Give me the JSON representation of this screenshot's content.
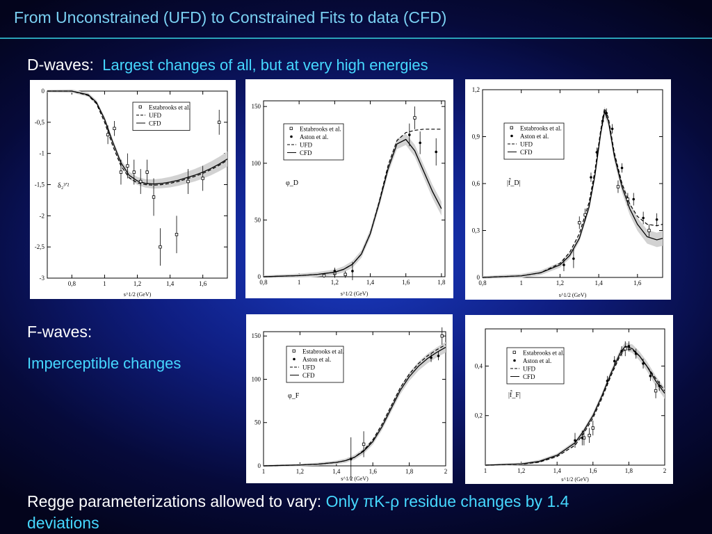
{
  "slide_title": "From Unconstrained (UFD) to Constrained Fits to data (CFD)",
  "dwaves": {
    "label": "D-waves:",
    "note": "Largest changes of all, but at very high energies"
  },
  "fwaves": {
    "label": "F-waves:",
    "note": "Imperceptible changes"
  },
  "footer": {
    "lead": "Regge parameterizations allowed to vary:",
    "highlight": "Only πK-ρ residue changes by 1.4",
    "tail": "deviations"
  },
  "chart_data": [
    {
      "type": "line",
      "ylabel": "δ₂³′²",
      "xlabel": "s^1/2 (GeV)",
      "xlim": [
        0.65,
        1.75
      ],
      "ylim": [
        -3,
        0
      ],
      "xticks": [
        0.8,
        1,
        1.2,
        1.4,
        1.6
      ],
      "xtick_labels": [
        "0,8",
        "1",
        "1,2",
        "1,4",
        "1,6"
      ],
      "yticks": [
        0,
        -0.5,
        -1,
        -1.5,
        -2,
        -2.5,
        -3
      ],
      "ytick_labels": [
        "0",
        "-0,5",
        "-1",
        "-1,5",
        "-2",
        "-2,5",
        "-3"
      ],
      "legend": [
        "Estabrooks et al.",
        "UFD",
        "CFD"
      ],
      "legend_position": "top-right",
      "series": [
        {
          "name": "CFD",
          "x": [
            0.65,
            0.8,
            0.9,
            0.95,
            1.0,
            1.05,
            1.1,
            1.15,
            1.2,
            1.25,
            1.3,
            1.35,
            1.4,
            1.45,
            1.5,
            1.55,
            1.6,
            1.65,
            1.7,
            1.75
          ],
          "y": [
            0,
            0,
            -0.06,
            -0.18,
            -0.45,
            -0.82,
            -1.15,
            -1.35,
            -1.44,
            -1.48,
            -1.49,
            -1.48,
            -1.46,
            -1.43,
            -1.39,
            -1.35,
            -1.3,
            -1.24,
            -1.17,
            -1.09
          ]
        },
        {
          "name": "UFD",
          "x": [
            0.65,
            0.8,
            0.9,
            0.95,
            1.0,
            1.05,
            1.1,
            1.15,
            1.2,
            1.25,
            1.3,
            1.35,
            1.4,
            1.45,
            1.5,
            1.55,
            1.6,
            1.65,
            1.7,
            1.75
          ],
          "y": [
            0,
            0,
            -0.07,
            -0.2,
            -0.5,
            -0.88,
            -1.2,
            -1.39,
            -1.47,
            -1.5,
            -1.51,
            -1.5,
            -1.48,
            -1.45,
            -1.41,
            -1.37,
            -1.32,
            -1.26,
            -1.19,
            -1.11
          ]
        },
        {
          "name": "Estabrooks et al.",
          "points": [
            [
              1.02,
              -0.7,
              0.15
            ],
            [
              1.06,
              -0.6,
              0.12
            ],
            [
              1.1,
              -1.3,
              0.2
            ],
            [
              1.14,
              -1.2,
              0.2
            ],
            [
              1.18,
              -1.3,
              0.2
            ],
            [
              1.22,
              -1.45,
              0.2
            ],
            [
              1.26,
              -1.3,
              0.2
            ],
            [
              1.3,
              -1.7,
              0.3
            ],
            [
              1.34,
              -2.5,
              0.3
            ],
            [
              1.44,
              -2.3,
              0.3
            ],
            [
              1.51,
              -1.45,
              0.2
            ],
            [
              1.6,
              -1.4,
              0.2
            ],
            [
              1.7,
              -0.5,
              0.2
            ]
          ]
        }
      ]
    },
    {
      "type": "line",
      "ylabel": "φ_D",
      "xlabel": "s^1/2 (GeV)",
      "xlim": [
        0.8,
        1.82
      ],
      "ylim": [
        0,
        155
      ],
      "xticks": [
        0.8,
        1,
        1.2,
        1.4,
        1.6,
        1.8
      ],
      "xtick_labels": [
        "0,8",
        "1",
        "1,2",
        "1,4",
        "1,6",
        "1,8"
      ],
      "yticks": [
        0,
        50,
        100,
        150
      ],
      "ytick_labels": [
        "0",
        "50",
        "100",
        "150"
      ],
      "legend": [
        "Estabrooks et al.",
        "Aston et al.",
        "UFD",
        "CFD"
      ],
      "legend_position": "top-left",
      "series": [
        {
          "name": "CFD",
          "x": [
            0.8,
            0.9,
            1.0,
            1.1,
            1.2,
            1.25,
            1.3,
            1.35,
            1.4,
            1.45,
            1.5,
            1.55,
            1.6,
            1.65,
            1.7,
            1.75,
            1.8
          ],
          "y": [
            0,
            0.5,
            1,
            2,
            4,
            6.5,
            11,
            20,
            38,
            65,
            95,
            117,
            121,
            111,
            93,
            75,
            60
          ]
        },
        {
          "name": "UFD",
          "x": [
            0.8,
            0.9,
            1.0,
            1.1,
            1.2,
            1.25,
            1.3,
            1.35,
            1.4,
            1.45,
            1.5,
            1.55,
            1.6,
            1.65,
            1.7,
            1.75,
            1.8
          ],
          "y": [
            0,
            0.5,
            1,
            2,
            4,
            6.5,
            11,
            20,
            38,
            66,
            98,
            120,
            127,
            129,
            130,
            130,
            130
          ]
        },
        {
          "name": "Estabrooks et al.",
          "points": [
            [
              1.14,
              1,
              2
            ],
            [
              1.2,
              3,
              4
            ],
            [
              1.26,
              2,
              3
            ],
            [
              1.65,
              140,
              10
            ]
          ]
        },
        {
          "name": "Aston et al.",
          "points": [
            [
              1.2,
              5,
              3
            ],
            [
              1.3,
              5,
              8
            ],
            [
              1.62,
              125,
              10
            ],
            [
              1.68,
              118,
              10
            ],
            [
              1.77,
              110,
              12
            ]
          ]
        }
      ]
    },
    {
      "type": "line",
      "ylabel": "|f̂_D|",
      "xlabel": "s^1/2 (GeV)",
      "xlim": [
        0.8,
        1.73
      ],
      "ylim": [
        0,
        1.2
      ],
      "xticks": [
        0.8,
        1,
        1.2,
        1.4,
        1.6
      ],
      "xtick_labels": [
        "0,8",
        "1",
        "1,2",
        "1,4",
        "1,6"
      ],
      "yticks": [
        0,
        0.3,
        0.6,
        0.9,
        1.2
      ],
      "ytick_labels": [
        "0",
        "0,3",
        "0,6",
        "0,9",
        "1,2"
      ],
      "legend": [
        "Estabrooks et al.",
        "Aston et al.",
        "UFD",
        "CFD"
      ],
      "legend_position": "top-right",
      "series": [
        {
          "name": "CFD",
          "x": [
            0.8,
            0.9,
            1.0,
            1.1,
            1.2,
            1.25,
            1.3,
            1.35,
            1.38,
            1.41,
            1.43,
            1.45,
            1.48,
            1.52,
            1.56,
            1.6,
            1.65,
            1.7,
            1.73
          ],
          "y": [
            0,
            0.005,
            0.01,
            0.03,
            0.08,
            0.14,
            0.25,
            0.45,
            0.65,
            0.92,
            1.06,
            1.0,
            0.78,
            0.58,
            0.44,
            0.34,
            0.26,
            0.24,
            0.25
          ]
        },
        {
          "name": "UFD",
          "x": [
            0.8,
            0.9,
            1.0,
            1.1,
            1.2,
            1.25,
            1.3,
            1.35,
            1.38,
            1.41,
            1.43,
            1.45,
            1.48,
            1.52,
            1.56,
            1.6,
            1.65,
            1.7,
            1.73
          ],
          "y": [
            0,
            0.005,
            0.01,
            0.03,
            0.09,
            0.16,
            0.28,
            0.48,
            0.68,
            0.94,
            1.08,
            1.02,
            0.8,
            0.6,
            0.47,
            0.39,
            0.34,
            0.33,
            0.34
          ]
        },
        {
          "name": "Estabrooks et al.",
          "points": [
            [
              1.3,
              0.35,
              0.04
            ],
            [
              1.33,
              0.4,
              0.04
            ],
            [
              1.5,
              0.58,
              0.04
            ],
            [
              1.55,
              0.5,
              0.04
            ],
            [
              1.66,
              0.3,
              0.04
            ]
          ]
        },
        {
          "name": "Aston et al.",
          "points": [
            [
              1.22,
              0.08,
              0.04
            ],
            [
              1.27,
              0.12,
              0.06
            ],
            [
              1.36,
              0.64,
              0.03
            ],
            [
              1.39,
              0.8,
              0.03
            ],
            [
              1.42,
              1.0,
              0.03
            ],
            [
              1.44,
              1.05,
              0.03
            ],
            [
              1.47,
              0.95,
              0.03
            ],
            [
              1.52,
              0.7,
              0.03
            ],
            [
              1.58,
              0.5,
              0.04
            ],
            [
              1.63,
              0.38,
              0.04
            ],
            [
              1.7,
              0.37,
              0.04
            ]
          ]
        }
      ]
    },
    {
      "type": "line",
      "ylabel": "φ_F",
      "xlabel": "s^1/2 (GeV)",
      "xlim": [
        1.0,
        2.0
      ],
      "ylim": [
        0,
        155
      ],
      "xticks": [
        1,
        1.2,
        1.4,
        1.6,
        1.8,
        2
      ],
      "xtick_labels": [
        "1",
        "1,2",
        "1,4",
        "1,6",
        "1,8",
        "2"
      ],
      "yticks": [
        0,
        50,
        100,
        150
      ],
      "ytick_labels": [
        "0",
        "50",
        "100",
        "150"
      ],
      "legend": [
        "Estabrooks et al.",
        "Aston et al.",
        "UFD",
        "CFD"
      ],
      "legend_position": "top-center",
      "series": [
        {
          "name": "CFD",
          "x": [
            1.0,
            1.2,
            1.3,
            1.4,
            1.45,
            1.5,
            1.55,
            1.6,
            1.65,
            1.7,
            1.75,
            1.8,
            1.85,
            1.9,
            1.95,
            2.0
          ],
          "y": [
            0,
            1,
            2,
            4,
            6,
            10,
            17,
            28,
            45,
            66,
            87,
            103,
            115,
            124,
            131,
            137
          ]
        },
        {
          "name": "UFD",
          "x": [
            1.0,
            1.2,
            1.3,
            1.4,
            1.45,
            1.5,
            1.55,
            1.6,
            1.65,
            1.7,
            1.75,
            1.8,
            1.85,
            1.9,
            1.95,
            2.0
          ],
          "y": [
            0,
            1,
            2,
            4,
            6,
            10,
            18,
            30,
            48,
            69,
            90,
            106,
            118,
            127,
            134,
            140
          ]
        },
        {
          "name": "Estabrooks et al.",
          "points": [
            [
              1.55,
              25,
              15
            ],
            [
              1.98,
              150,
              10
            ]
          ]
        },
        {
          "name": "Aston et al.",
          "points": [
            [
              1.48,
              8,
              25
            ],
            [
              1.92,
              125,
              5
            ],
            [
              1.96,
              127,
              5
            ]
          ]
        }
      ]
    },
    {
      "type": "line",
      "ylabel": "|f̂_F|",
      "xlabel": "s^1/2 (GeV)",
      "xlim": [
        1.0,
        2.0
      ],
      "ylim": [
        0,
        0.55
      ],
      "xticks": [
        1,
        1.2,
        1.4,
        1.6,
        1.8,
        2
      ],
      "xtick_labels": [
        "1",
        "1,2",
        "1,4",
        "1,6",
        "1,8",
        "2"
      ],
      "yticks": [
        0.2,
        0.4
      ],
      "ytick_labels": [
        "0,2",
        "0,4"
      ],
      "legend": [
        "Estabrooks et al.",
        "Aston et al.",
        "UFD",
        "CFD"
      ],
      "legend_position": "top-left",
      "series": [
        {
          "name": "CFD",
          "x": [
            1.0,
            1.2,
            1.3,
            1.4,
            1.5,
            1.55,
            1.6,
            1.65,
            1.7,
            1.75,
            1.78,
            1.82,
            1.86,
            1.9,
            1.95,
            2.0
          ],
          "y": [
            0,
            0.005,
            0.015,
            0.04,
            0.09,
            0.14,
            0.2,
            0.28,
            0.37,
            0.45,
            0.48,
            0.47,
            0.44,
            0.4,
            0.34,
            0.29
          ]
        },
        {
          "name": "UFD",
          "x": [
            1.0,
            1.2,
            1.3,
            1.4,
            1.5,
            1.55,
            1.6,
            1.65,
            1.7,
            1.75,
            1.78,
            1.82,
            1.86,
            1.9,
            1.95,
            2.0
          ],
          "y": [
            0,
            0.004,
            0.012,
            0.035,
            0.08,
            0.13,
            0.19,
            0.27,
            0.36,
            0.44,
            0.47,
            0.465,
            0.44,
            0.4,
            0.35,
            0.3
          ]
        },
        {
          "name": "Estabrooks et al.",
          "points": [
            [
              1.55,
              0.11,
              0.03
            ],
            [
              1.58,
              0.12,
              0.03
            ],
            [
              1.6,
              0.15,
              0.03
            ],
            [
              1.78,
              0.47,
              0.03
            ],
            [
              1.95,
              0.3,
              0.03
            ]
          ]
        },
        {
          "name": "Aston et al.",
          "points": [
            [
              1.5,
              0.1,
              0.03
            ],
            [
              1.54,
              0.11,
              0.03
            ],
            [
              1.68,
              0.34,
              0.02
            ],
            [
              1.72,
              0.42,
              0.02
            ],
            [
              1.76,
              0.46,
              0.02
            ],
            [
              1.8,
              0.48,
              0.02
            ],
            [
              1.84,
              0.45,
              0.02
            ],
            [
              1.88,
              0.41,
              0.02
            ],
            [
              1.92,
              0.36,
              0.02
            ],
            [
              1.97,
              0.32,
              0.02
            ]
          ]
        }
      ]
    }
  ]
}
